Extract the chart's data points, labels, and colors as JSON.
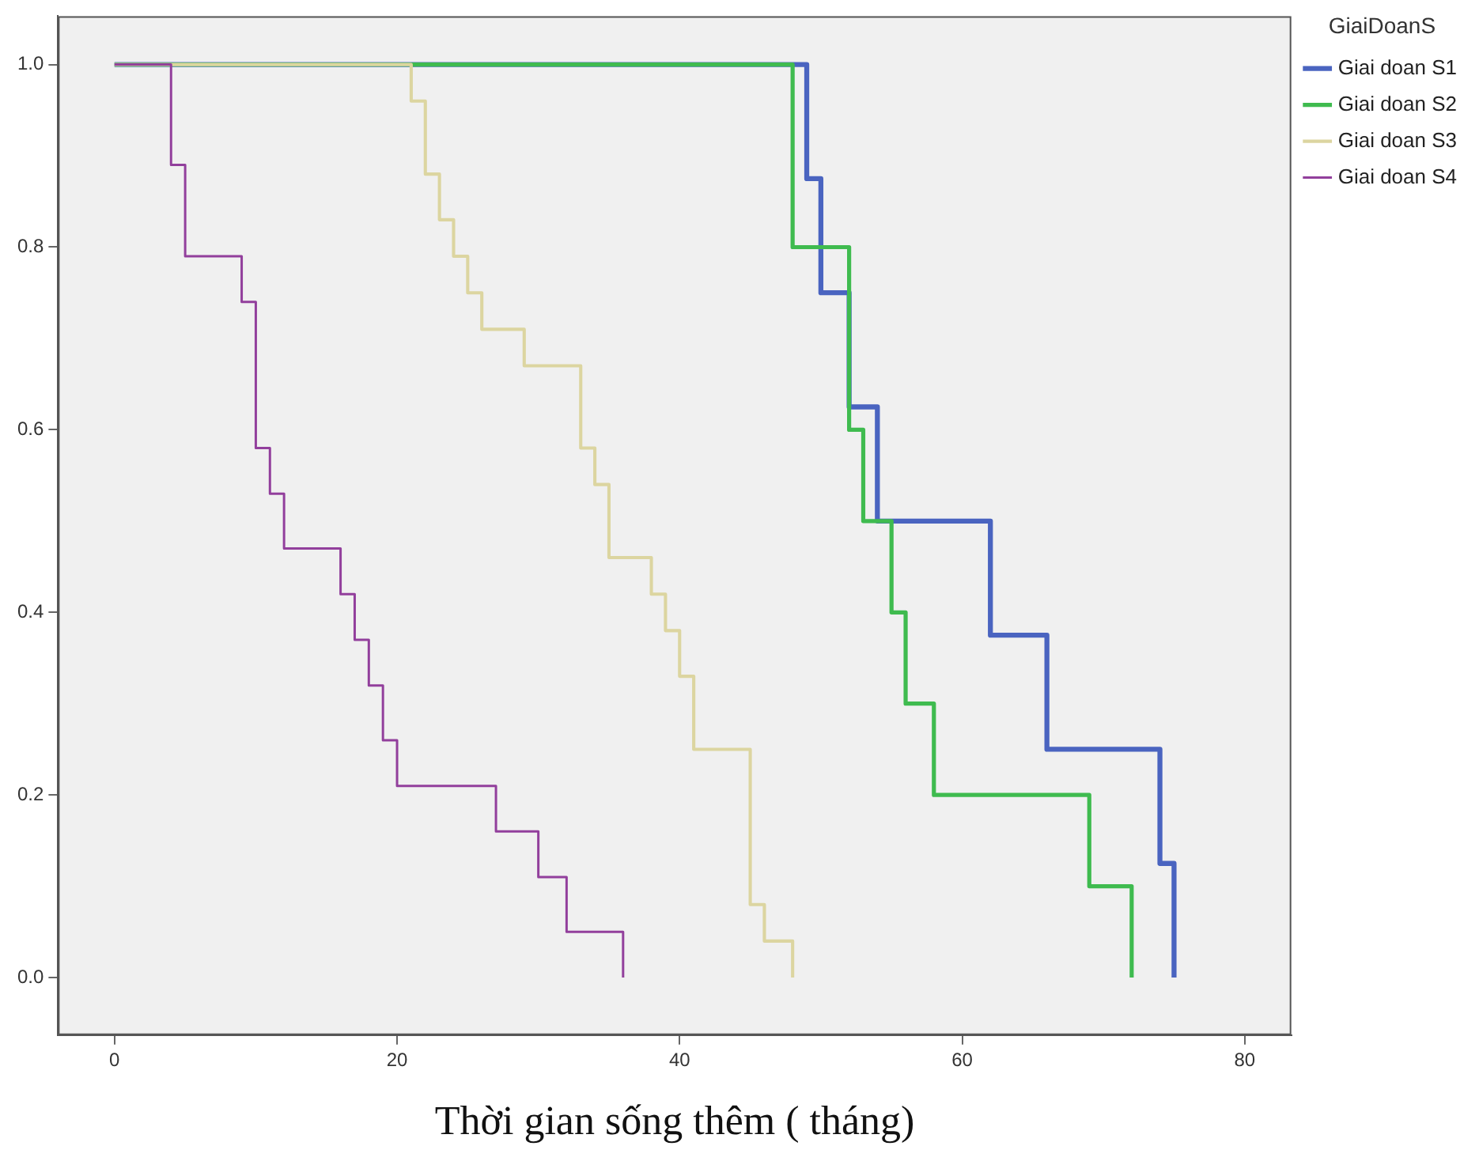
{
  "chart_data": {
    "type": "step",
    "xlabel": "Thời gian sống thêm ( tháng)",
    "legend_title": "GiaiDoanS",
    "legend": "top right",
    "grid": false,
    "marker": "none",
    "line_style": "solid",
    "xlim": [
      -4,
      83.3
    ],
    "xticks": [
      0,
      20,
      40,
      60,
      80
    ],
    "ylim": [
      -0.063,
      1.053
    ],
    "yticks": [
      {
        "value": 0,
        "label": "0.0"
      },
      {
        "value": 0.2,
        "label": "0.2"
      },
      {
        "value": 0.4,
        "label": "0.4"
      },
      {
        "value": 0.6,
        "label": "0.6"
      },
      {
        "value": 0.8,
        "label": "0.8"
      },
      {
        "value": 1,
        "label": "1.0"
      }
    ],
    "series": [
      {
        "name": "Giai doan S1",
        "color": "#4a64c0",
        "x": [
          0,
          49,
          50,
          52,
          54,
          62,
          66,
          74,
          75
        ],
        "values": [
          1,
          0.875,
          0.75,
          0.625,
          0.5,
          0.375,
          0.25,
          0.125,
          0
        ]
      },
      {
        "name": "Giai doan S2",
        "color": "#3fbb4f",
        "x": [
          0,
          48,
          52,
          53,
          55,
          56,
          58,
          69,
          72
        ],
        "values": [
          1,
          0.8,
          0.6,
          0.5,
          0.4,
          0.3,
          0.2,
          0.1,
          0
        ]
      },
      {
        "name": "Giai doan S3",
        "color": "#dcd5a0",
        "x": [
          0,
          21,
          22,
          23,
          24,
          25,
          26,
          29,
          33,
          34,
          35,
          38,
          39,
          40,
          41,
          45,
          46,
          48
        ],
        "values": [
          1,
          0.96,
          0.88,
          0.83,
          0.79,
          0.75,
          0.71,
          0.67,
          0.58,
          0.54,
          0.46,
          0.42,
          0.38,
          0.33,
          0.25,
          0.08,
          0.04,
          0
        ]
      },
      {
        "name": "Giai doan S4",
        "color": "#923f9c",
        "x": [
          0,
          4,
          5,
          9,
          10,
          11,
          12,
          16,
          17,
          18,
          19,
          20,
          27,
          30,
          32,
          36
        ],
        "values": [
          1,
          0.89,
          0.79,
          0.74,
          0.58,
          0.53,
          0.47,
          0.42,
          0.37,
          0.32,
          0.26,
          0.21,
          0.16,
          0.11,
          0.05,
          0
        ]
      }
    ]
  }
}
